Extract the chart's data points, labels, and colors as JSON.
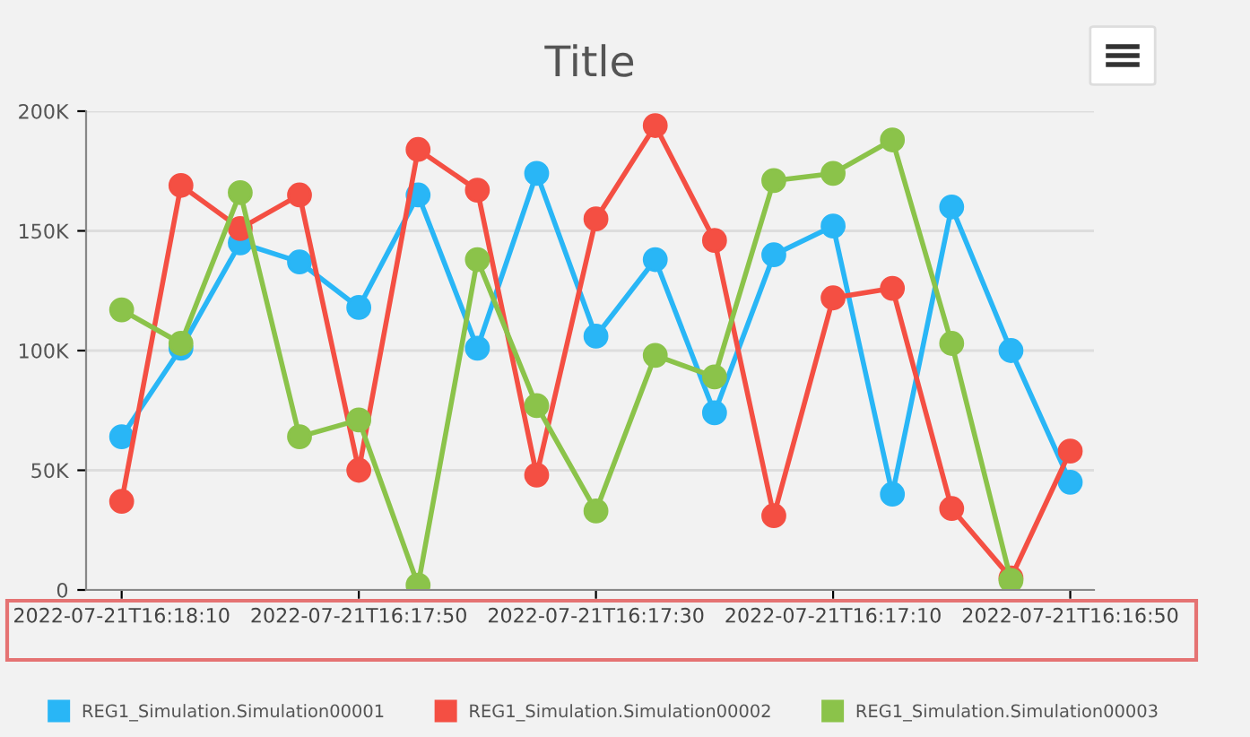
{
  "chart_data": {
    "type": "line",
    "title": "Title",
    "categories": [
      "2022-07-21T16:18:10",
      null,
      null,
      null,
      "2022-07-21T16:17:50",
      null,
      null,
      null,
      "2022-07-21T16:17:30",
      null,
      null,
      null,
      "2022-07-21T16:17:10",
      null,
      null,
      null,
      "2022-07-21T16:16:50"
    ],
    "series": [
      {
        "name": "REG1_Simulation.Simulation00001",
        "color": "#29b6f6",
        "values": [
          64000,
          101000,
          145000,
          137000,
          118000,
          165000,
          101000,
          174000,
          106000,
          138000,
          74000,
          140000,
          152000,
          40000,
          160000,
          100000,
          45000
        ]
      },
      {
        "name": "REG1_Simulation.Simulation00002",
        "color": "#f44f43",
        "values": [
          37000,
          169000,
          151000,
          165000,
          50000,
          184000,
          167000,
          48000,
          155000,
          194000,
          146000,
          31000,
          122000,
          126000,
          34000,
          5000,
          58000
        ]
      },
      {
        "name": "REG1_Simulation.Simulation00003",
        "color": "#8bc34a",
        "values": [
          117000,
          103000,
          166000,
          64000,
          71000,
          2000,
          138000,
          77000,
          33000,
          98000,
          89000,
          171000,
          174000,
          188000,
          103000,
          4000,
          null
        ]
      }
    ],
    "ylim": [
      0,
      200000
    ],
    "yticks": [
      {
        "value": 0,
        "label": "0"
      },
      {
        "value": 50000,
        "label": "50K"
      },
      {
        "value": 100000,
        "label": "100K"
      },
      {
        "value": 150000,
        "label": "150K"
      },
      {
        "value": 200000,
        "label": "200K"
      }
    ],
    "grid": "y",
    "legend": "bottom",
    "marker": "circle",
    "line_style": "solid"
  }
}
